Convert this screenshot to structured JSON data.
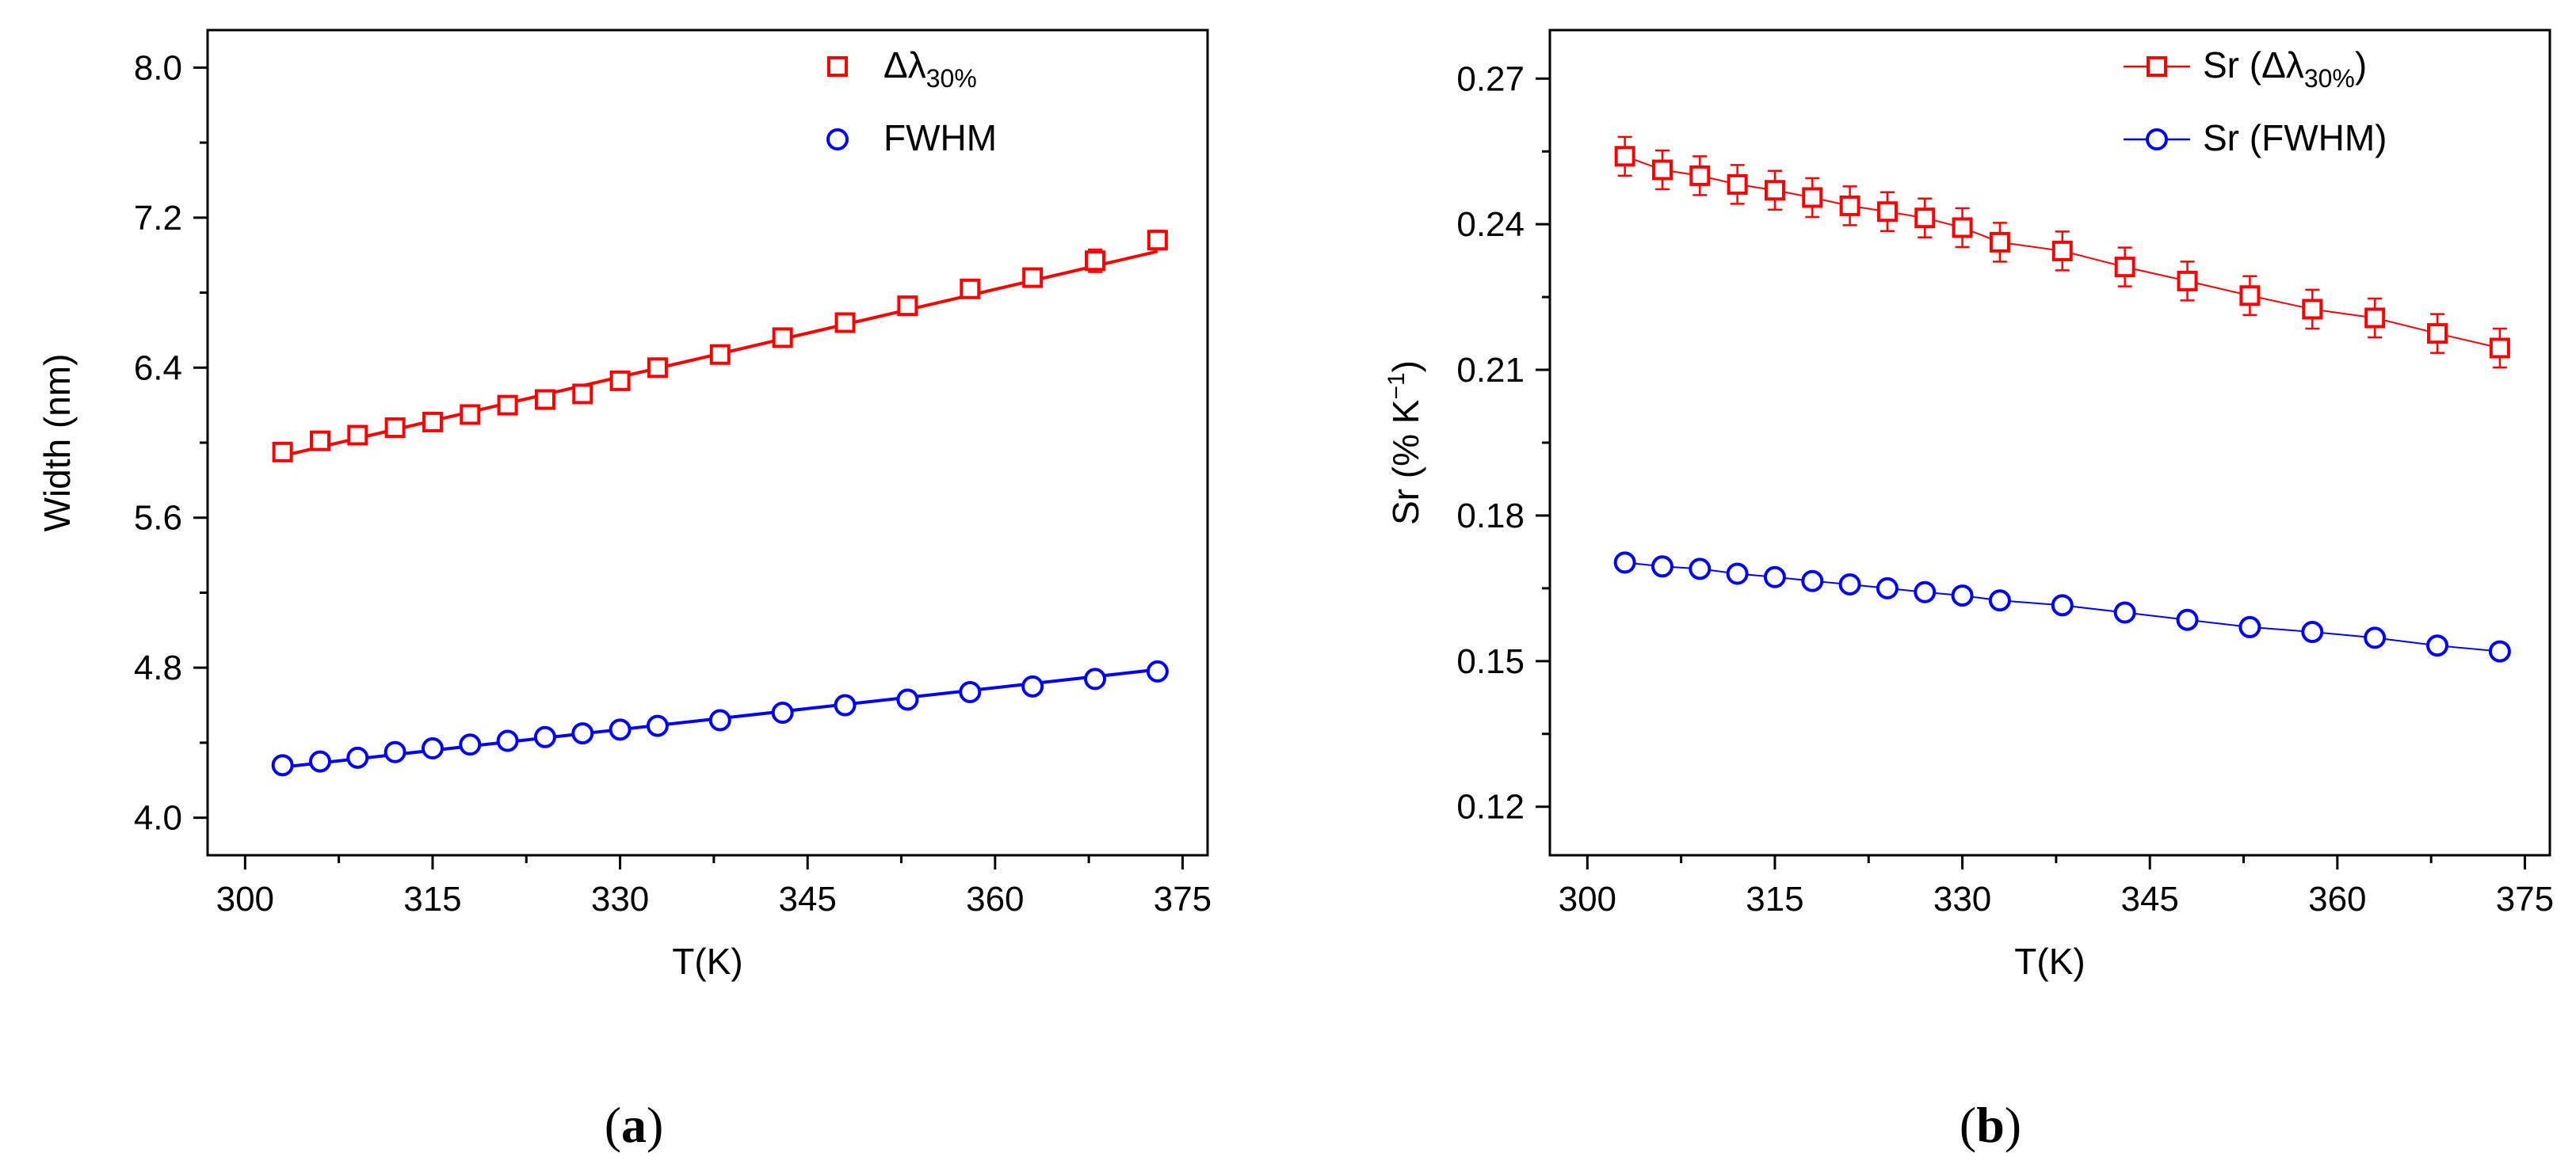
{
  "chart_data": [
    {
      "panel": "a",
      "type": "scatter",
      "caption": "a",
      "xlabel": "T(K)",
      "ylabel": "Width (nm)",
      "xlim": [
        297,
        377
      ],
      "ylim": [
        3.8,
        8.2
      ],
      "xticks": [
        300,
        315,
        330,
        345,
        360,
        375
      ],
      "yticks": [
        4.0,
        4.8,
        5.6,
        6.4,
        7.2,
        8.0
      ],
      "ytick_labels": [
        "4.0",
        "4.8",
        "5.6",
        "6.4",
        "7.2",
        "8.0"
      ],
      "legend_position": "top-right",
      "series": [
        {
          "name": "Δλ",
          "name_sub": "30%",
          "marker": "square",
          "color": "#ff0000",
          "fit_line": true,
          "x": [
            303,
            306,
            309,
            312,
            315,
            318,
            321,
            324,
            327,
            330,
            333,
            338,
            343,
            348,
            353,
            358,
            363,
            368,
            373
          ],
          "y": [
            5.95,
            6.01,
            6.04,
            6.08,
            6.11,
            6.15,
            6.2,
            6.23,
            6.26,
            6.33,
            6.4,
            6.47,
            6.56,
            6.64,
            6.73,
            6.82,
            6.88,
            6.97,
            7.08
          ],
          "err": [
            0.03,
            0.03,
            0.03,
            0.03,
            0.03,
            0.03,
            0.03,
            0.03,
            0.03,
            0.03,
            0.03,
            0.03,
            0.04,
            0.04,
            0.04,
            0.04,
            0.04,
            0.06,
            0.05
          ],
          "fit": {
            "x": [
              303,
              373
            ],
            "y": [
              5.93,
              7.02
            ]
          }
        },
        {
          "name": "FWHM",
          "name_sub": "",
          "marker": "circle",
          "color": "#0000ff",
          "fit_line": true,
          "x": [
            303,
            306,
            309,
            312,
            315,
            318,
            321,
            324,
            327,
            330,
            333,
            338,
            343,
            348,
            353,
            358,
            363,
            368,
            373
          ],
          "y": [
            4.28,
            4.3,
            4.32,
            4.35,
            4.37,
            4.39,
            4.41,
            4.43,
            4.45,
            4.47,
            4.49,
            4.52,
            4.56,
            4.6,
            4.63,
            4.67,
            4.7,
            4.74,
            4.78
          ],
          "err": [
            0.02,
            0.02,
            0.02,
            0.02,
            0.02,
            0.02,
            0.02,
            0.02,
            0.02,
            0.02,
            0.02,
            0.02,
            0.02,
            0.02,
            0.02,
            0.02,
            0.02,
            0.02,
            0.02
          ],
          "fit": {
            "x": [
              303,
              373
            ],
            "y": [
              4.27,
              4.79
            ]
          }
        }
      ]
    },
    {
      "panel": "b",
      "type": "line",
      "caption": "b",
      "xlabel": "T(K)",
      "ylabel": "Sr (% K",
      "ylabel_sup": "−1",
      "ylabel_end": ")",
      "xlim": [
        297,
        377
      ],
      "ylim": [
        0.11,
        0.28
      ],
      "xticks": [
        300,
        315,
        330,
        345,
        360,
        375
      ],
      "yticks": [
        0.12,
        0.15,
        0.18,
        0.21,
        0.24,
        0.27
      ],
      "ytick_labels": [
        "0.12",
        "0.15",
        "0.18",
        "0.21",
        "0.24",
        "0.27"
      ],
      "legend_position": "top-right",
      "series": [
        {
          "name": "Sr (Δλ",
          "name_sub": "30%",
          "name_end": ")",
          "marker": "square",
          "color": "#ff0000",
          "x": [
            303,
            306,
            309,
            312,
            315,
            318,
            321,
            324,
            327,
            330,
            333,
            338,
            343,
            348,
            353,
            358,
            363,
            368,
            373
          ],
          "y": [
            0.254,
            0.2512,
            0.25,
            0.2482,
            0.247,
            0.2455,
            0.2438,
            0.2426,
            0.2413,
            0.2393,
            0.2363,
            0.2345,
            0.2312,
            0.2283,
            0.2253,
            0.2225,
            0.2207,
            0.2175,
            0.2145
          ],
          "err": [
            0.004,
            0.004,
            0.004,
            0.004,
            0.004,
            0.004,
            0.004,
            0.004,
            0.004,
            0.004,
            0.004,
            0.004,
            0.004,
            0.004,
            0.004,
            0.004,
            0.004,
            0.004,
            0.004
          ]
        },
        {
          "name": "Sr (FWHM)",
          "name_sub": "",
          "name_end": "",
          "marker": "circle",
          "color": "#0000ff",
          "x": [
            303,
            306,
            309,
            312,
            315,
            318,
            321,
            324,
            327,
            330,
            333,
            338,
            343,
            348,
            353,
            358,
            363,
            368,
            373
          ],
          "y": [
            0.1703,
            0.1695,
            0.169,
            0.168,
            0.1673,
            0.1665,
            0.1658,
            0.165,
            0.1642,
            0.1635,
            0.1625,
            0.1615,
            0.16,
            0.1585,
            0.157,
            0.156,
            0.1548,
            0.1532,
            0.152
          ],
          "err": [
            0,
            0,
            0,
            0,
            0,
            0,
            0,
            0,
            0,
            0,
            0,
            0,
            0,
            0,
            0,
            0,
            0,
            0,
            0
          ]
        }
      ]
    }
  ]
}
